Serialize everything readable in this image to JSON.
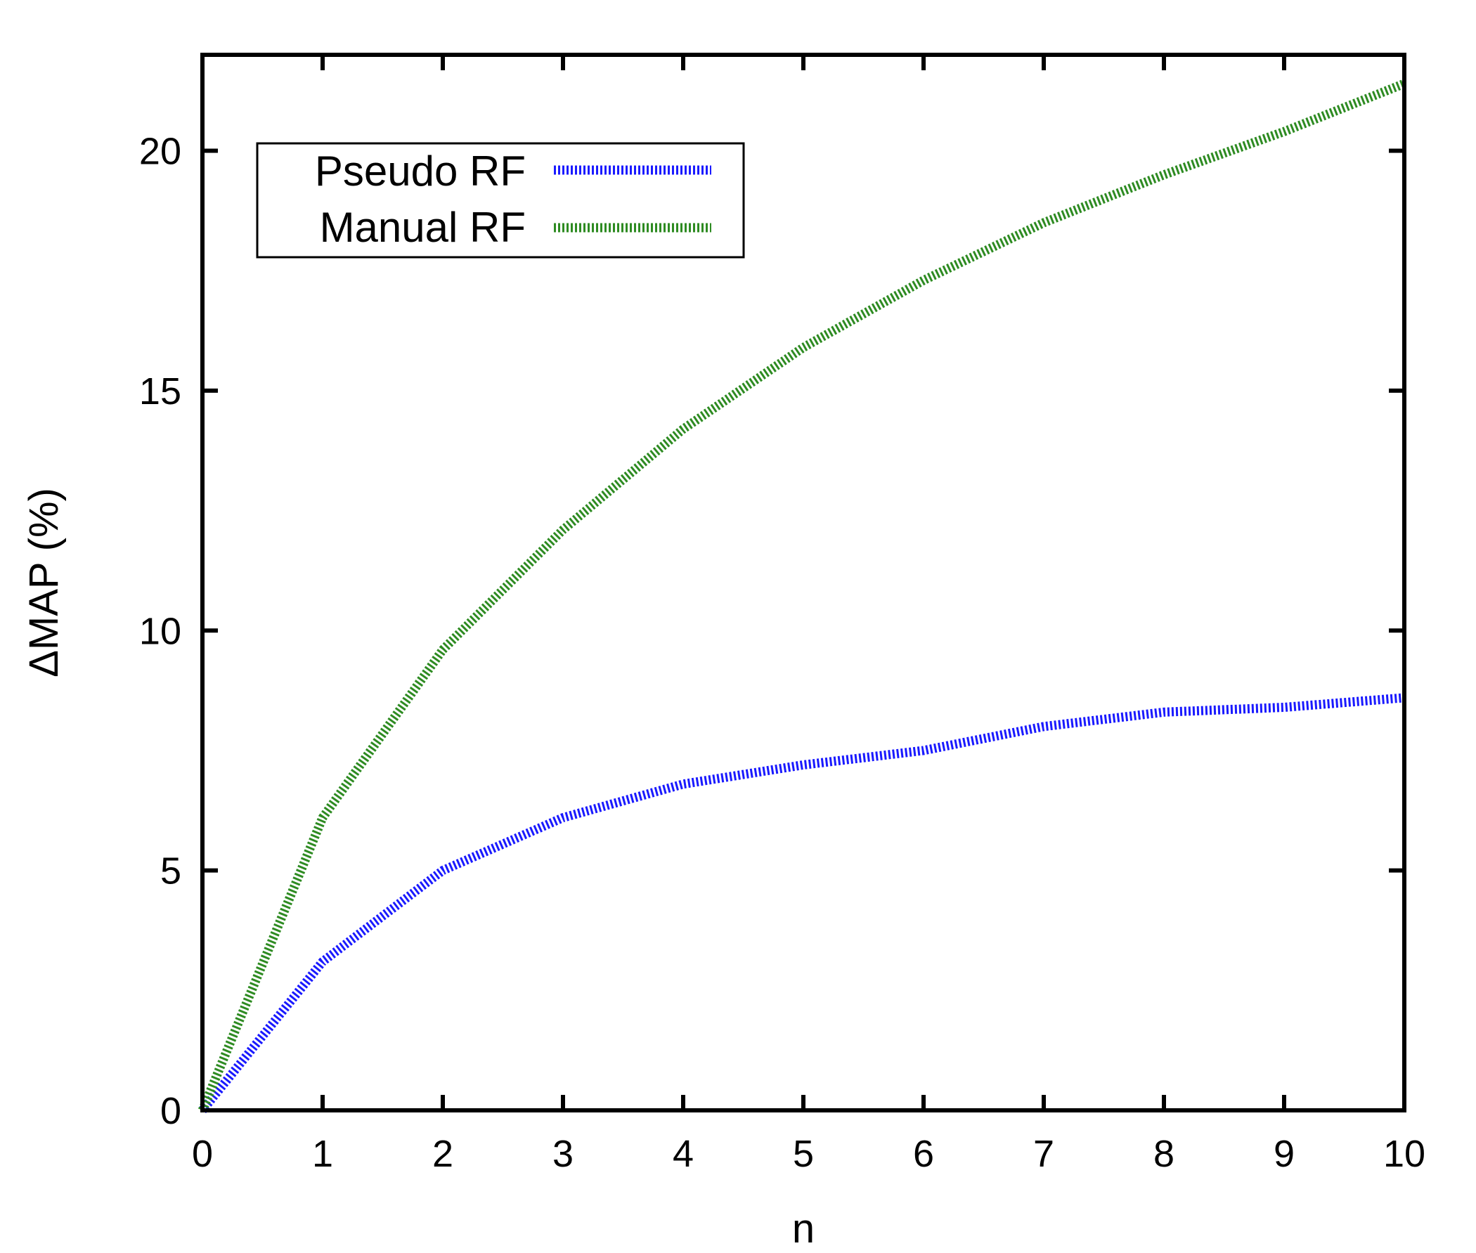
{
  "chart_data": {
    "type": "line",
    "title": "",
    "xlabel": "n",
    "ylabel": "ΔMAP (%)",
    "xlim": [
      0,
      10
    ],
    "ylim": [
      0,
      22
    ],
    "xticks": [
      0,
      1,
      2,
      3,
      4,
      5,
      6,
      7,
      8,
      9,
      10
    ],
    "yticks": [
      0,
      5,
      10,
      15,
      20
    ],
    "x": [
      0,
      1,
      2,
      3,
      4,
      5,
      6,
      7,
      8,
      9,
      10
    ],
    "grid": false,
    "legend_position": "top-left",
    "series": [
      {
        "name": "Pseudo RF",
        "color": "#1a1aff",
        "style": "dashed",
        "values": [
          0,
          3.1,
          5.0,
          6.1,
          6.8,
          7.2,
          7.5,
          8.0,
          8.3,
          8.4,
          8.6
        ]
      },
      {
        "name": "Manual RF",
        "color": "#2e8b22",
        "style": "dashed",
        "values": [
          0,
          6.1,
          9.6,
          12.1,
          14.2,
          15.9,
          17.3,
          18.5,
          19.5,
          20.4,
          21.4
        ]
      }
    ]
  }
}
